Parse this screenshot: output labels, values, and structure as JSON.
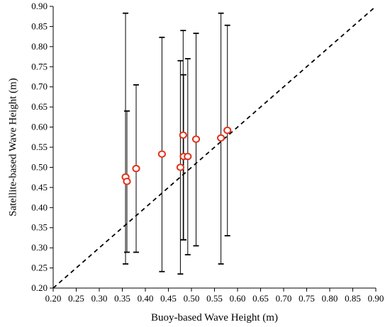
{
  "chart_data": {
    "type": "scatter",
    "xlabel": "Buoy-based Wave Height (m)",
    "ylabel": "Satellite-based Wave Height (m)",
    "xlim": [
      0.2,
      0.9
    ],
    "ylim": [
      0.2,
      0.9
    ],
    "xticks": [
      "0.20",
      "0.25",
      "0.30",
      "0.35",
      "0.40",
      "0.45",
      "0.50",
      "0.55",
      "0.60",
      "0.65",
      "0.70",
      "0.75",
      "0.80",
      "0.85",
      "0.90"
    ],
    "yticks": [
      "0.20",
      "0.25",
      "0.30",
      "0.35",
      "0.40",
      "0.45",
      "0.50",
      "0.55",
      "0.60",
      "0.65",
      "0.70",
      "0.75",
      "0.80",
      "0.85",
      "0.90"
    ],
    "grid": false,
    "reference_line": {
      "style": "dashed",
      "x": [
        0.2,
        0.9
      ],
      "y": [
        0.2,
        0.9
      ]
    },
    "points": [
      {
        "x": 0.357,
        "y": 0.476,
        "err_low": 0.26,
        "err_high": 0.883
      },
      {
        "x": 0.36,
        "y": 0.465,
        "err_low": 0.289,
        "err_high": 0.64
      },
      {
        "x": 0.38,
        "y": 0.497,
        "err_low": 0.289,
        "err_high": 0.705
      },
      {
        "x": 0.436,
        "y": 0.533,
        "err_low": 0.241,
        "err_high": 0.823
      },
      {
        "x": 0.476,
        "y": 0.5,
        "err_low": 0.235,
        "err_high": 0.765
      },
      {
        "x": 0.482,
        "y": 0.58,
        "err_low": 0.32,
        "err_high": 0.84
      },
      {
        "x": 0.483,
        "y": 0.527,
        "err_low": 0.32,
        "err_high": 0.73
      },
      {
        "x": 0.492,
        "y": 0.527,
        "err_low": 0.283,
        "err_high": 0.77
      },
      {
        "x": 0.51,
        "y": 0.57,
        "err_low": 0.305,
        "err_high": 0.833
      },
      {
        "x": 0.564,
        "y": 0.573,
        "err_low": 0.26,
        "err_high": 0.883
      },
      {
        "x": 0.578,
        "y": 0.592,
        "err_low": 0.33,
        "err_high": 0.853
      }
    ],
    "colors": {
      "marker": "#e0321a",
      "errorbar": "#000000",
      "axis": "#000000"
    }
  }
}
